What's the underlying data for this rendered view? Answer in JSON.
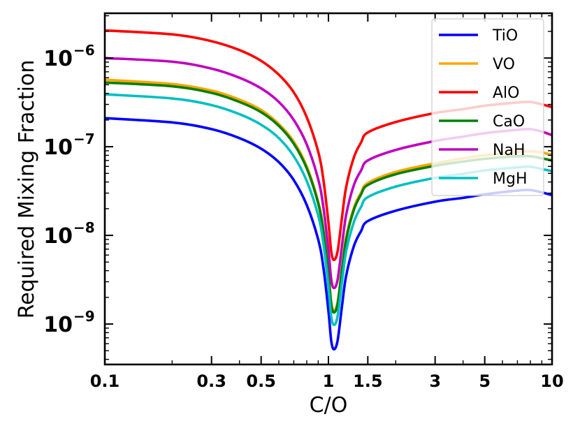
{
  "chart_data": {
    "type": "line",
    "title": "",
    "xlabel": "C/O",
    "ylabel": "Required Mixing Fraction",
    "xscale": "log",
    "yscale": "log",
    "xlim": [
      0.1,
      10
    ],
    "ylim": [
      3.5e-10,
      3.2e-06
    ],
    "xticks": [
      {
        "value": 0.1,
        "label": "0.1"
      },
      {
        "value": 0.3,
        "label": "0.3"
      },
      {
        "value": 0.5,
        "label": "0.5"
      },
      {
        "value": 1,
        "label": "1"
      },
      {
        "value": 1.5,
        "label": "1.5"
      },
      {
        "value": 3,
        "label": "3"
      },
      {
        "value": 5,
        "label": "5"
      },
      {
        "value": 10,
        "label": "10"
      }
    ],
    "yticks": [
      {
        "value": 1e-09,
        "base": "10",
        "exp": "−9"
      },
      {
        "value": 1e-08,
        "base": "10",
        "exp": "−8"
      },
      {
        "value": 1e-07,
        "base": "10",
        "exp": "−7"
      },
      {
        "value": 1e-06,
        "base": "10",
        "exp": "−6"
      }
    ],
    "legend_position": "top-right",
    "x": [
      0.1,
      0.2,
      0.3,
      0.4,
      0.5,
      0.6,
      0.7,
      0.8,
      0.9,
      0.95,
      1.0,
      1.03,
      1.06,
      1.1,
      1.15,
      1.2,
      1.3,
      1.4,
      1.5,
      2.0,
      3.0,
      4.0,
      5.0,
      7.0,
      8.0,
      9.0,
      10.0
    ],
    "series": [
      {
        "name": "TiO",
        "color": "#0000ff",
        "values": [
          2.1e-07,
          1.88e-07,
          1.58e-07,
          1.25e-07,
          9.5e-08,
          6.7e-08,
          4.2e-08,
          2.2e-08,
          9e-09,
          4.3e-09,
          1.4e-09,
          6.4e-10,
          5.2e-10,
          6.6e-10,
          1.6e-09,
          3.5e-09,
          7.6e-09,
          1.12e-08,
          1.45e-08,
          1.9e-08,
          2.4e-08,
          2.65e-08,
          2.9e-08,
          3.2e-08,
          3.25e-08,
          3.05e-08,
          2.85e-08
        ]
      },
      {
        "name": "VO",
        "color": "#ffa500",
        "values": [
          5.7e-07,
          5.1e-07,
          4.3e-07,
          3.4e-07,
          2.6e-07,
          1.8e-07,
          1.14e-07,
          6e-08,
          2.4e-08,
          1.15e-08,
          3.8e-09,
          1.75e-09,
          1.42e-09,
          1.8e-09,
          4.3e-09,
          9.5e-09,
          2.06e-08,
          3.05e-08,
          3.9e-08,
          5.2e-08,
          6.5e-08,
          7.4e-08,
          8e-08,
          8.7e-08,
          8.9e-08,
          8.6e-08,
          8.1e-08
        ]
      },
      {
        "name": "AlO",
        "color": "#ff0000",
        "values": [
          2.05e-06,
          1.85e-06,
          1.55e-06,
          1.23e-06,
          9.3e-07,
          6.5e-07,
          4.1e-07,
          2.15e-07,
          8.8e-08,
          4.2e-08,
          1.4e-08,
          6.5e-09,
          5.3e-09,
          6.7e-09,
          1.6e-08,
          3.5e-08,
          7.6e-08,
          1.12e-07,
          1.45e-07,
          1.9e-07,
          2.4e-07,
          2.65e-07,
          2.9e-07,
          3.15e-07,
          3.2e-07,
          3e-07,
          2.8e-07
        ]
      },
      {
        "name": "CaO",
        "color": "#008000",
        "values": [
          5.3e-07,
          4.8e-07,
          4.05e-07,
          3.2e-07,
          2.45e-07,
          1.72e-07,
          1.08e-07,
          5.7e-08,
          2.3e-08,
          1.1e-08,
          3.6e-09,
          1.65e-09,
          1.35e-09,
          1.7e-09,
          4.1e-09,
          9e-09,
          1.95e-08,
          2.9e-08,
          3.7e-08,
          4.9e-08,
          6.1e-08,
          6.8e-08,
          7.3e-08,
          7.8e-08,
          7.8e-08,
          7.4e-08,
          7e-08
        ]
      },
      {
        "name": "NaH",
        "color": "#bf00bf",
        "values": [
          1e-06,
          9.1e-07,
          7.6e-07,
          6e-07,
          4.55e-07,
          3.2e-07,
          2e-07,
          1.06e-07,
          4.3e-08,
          2.05e-08,
          6.8e-09,
          3.15e-09,
          2.55e-09,
          3.2e-09,
          7.7e-09,
          1.7e-08,
          3.7e-08,
          5.4e-08,
          7e-08,
          9.2e-08,
          1.16e-07,
          1.3e-07,
          1.42e-07,
          1.55e-07,
          1.58e-07,
          1.48e-07,
          1.35e-07
        ]
      },
      {
        "name": "MgH",
        "color": "#00bfbf",
        "values": [
          3.9e-07,
          3.5e-07,
          2.95e-07,
          2.33e-07,
          1.77e-07,
          1.25e-07,
          7.8e-08,
          4.1e-08,
          1.68e-08,
          8e-09,
          2.65e-09,
          1.2e-09,
          9.8e-10,
          1.24e-09,
          3e-09,
          6.6e-09,
          1.42e-08,
          2.1e-08,
          2.7e-08,
          3.55e-08,
          4.45e-08,
          4.95e-08,
          5.4e-08,
          5.85e-08,
          5.95e-08,
          5.6e-08,
          5.3e-08
        ]
      }
    ]
  }
}
